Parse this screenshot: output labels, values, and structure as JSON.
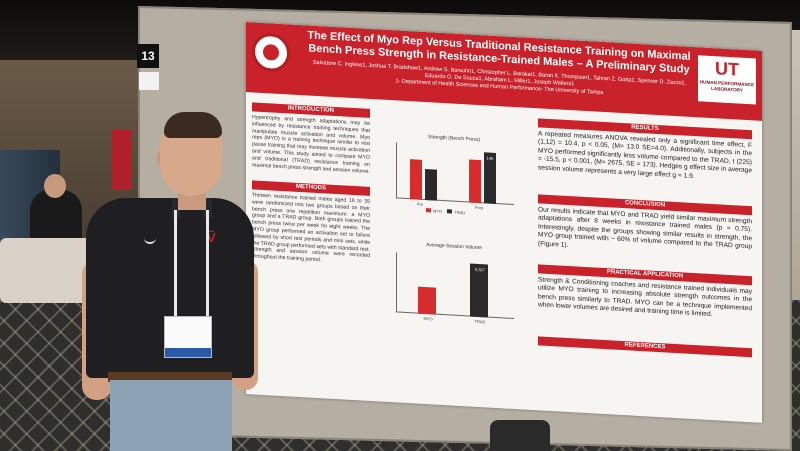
{
  "scene": {
    "board_number": "13"
  },
  "poster": {
    "title": "The Effect of Myo Rep Versus Traditional Resistance Training on Maximal Bench Press Strength in Resistance-Trained Males – A Preliminary Study",
    "authors": "Salvatore C. Inglese1, Joshua T. Bradshaw1, Andrew S. Barsuhn1, Christopher L. Barakat1, Baron K. Thompson1, Tahran Z. Gotta1, Spencer D. Zazzo1, Eduardo O. De Souza1, Abraham L. Miller1, Joseph Walters1",
    "affiliation": "1- Department of Health Sciences and Human Performance- The University of Tampa",
    "logo_mark": "UT",
    "logo_text": "HUMAN PERFORMANCE LABORATORY",
    "sections": {
      "introduction": "INTRODUCTION",
      "methods": "METHODS",
      "results": "RESULTS",
      "conclusion": "CONCLUSION",
      "practical": "PRACTICAL APPLICATION",
      "references": "REFERENCES"
    },
    "results_text": "A repeated measures ANOVA revealed only a significant time effect, F (1,12) = 10.4, p < 0.05, (M= 13.0 SE=4.0). Additionally, subjects in the MYO performed significantly less volume compared to the TRAD, t (225) = -15.5, p < 0.001, (M= 2675, SE = 173). Hedges g effect size in average session volume represents a very large effect g = 1.9.",
    "conclusion_text": "Our results indicate that MYO and TRAD yield similar maximum strength adaptations after 8 weeks in resistance trained males (p = 0.75). Interestingly, despite the groups showing similar results in strength, the MYO group trained with ~ 60% of volume compared to the TRAD group (Figure 1).",
    "practical_text": "Strength & Conditioning coaches and resistance trained individuals may utilize MYO training to increasing absolute strength outcomes in the bench press similarly to TRAD. MYO can be a technique implemented when lower volumes are desired and training time is limited.",
    "intro_text": "Hypertrophy and strength adaptations may be influenced by resistance training techniques that manipulate muscle activation and volume. Myo reps (MYO) is a training technique similar to rest pause training that may increase muscle activation and volume. This study aimed to compare MYO and traditional (TRAD) resistance training on maximal bench press strength and session volume.",
    "methods_text": "Thirteen resistance trained males aged 18 to 35 were randomized into two groups based on their bench press one repetition maximum: a MYO group and a TRAD group. Both groups trained the bench press twice per week for eight weeks. The MYO group performed an activation set to failure followed by short rest periods and mini sets, while the TRAD group performed sets with standard rest. Strength and session volume were recorded throughout the training period."
  },
  "chart_data": [
    {
      "type": "bar",
      "title": "Strength (Bench Press)",
      "categories": [
        "Pre",
        "Post"
      ],
      "series": [
        {
          "name": "MYO",
          "values": [
            113,
            122
          ],
          "color": "#d72c2c"
        },
        {
          "name": "TRAD",
          "values": [
            90,
            146
          ],
          "color": "#2a2a2a"
        }
      ],
      "data_labels": [
        "",
        "",
        "",
        "146"
      ],
      "ylim": [
        0,
        160
      ]
    },
    {
      "type": "bar",
      "title": "Average Session Volume",
      "categories": [
        "MYO",
        "TRAD"
      ],
      "values": [
        2675,
        5327
      ],
      "colors": [
        "#d72c2c",
        "#2a2a2a"
      ],
      "data_labels": [
        "",
        "5,327"
      ],
      "ylim": [
        0,
        6000
      ]
    }
  ]
}
